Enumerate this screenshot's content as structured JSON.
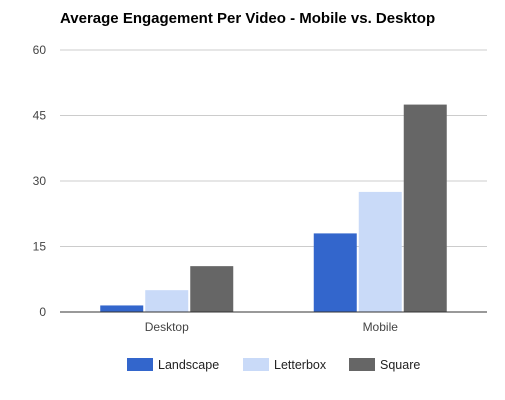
{
  "chart_data": {
    "type": "bar",
    "title": "Average Engagement Per Video - Mobile vs. Desktop",
    "xlabel": "",
    "ylabel": "",
    "categories": [
      "Desktop",
      "Mobile"
    ],
    "series": [
      {
        "name": "Landscape",
        "color": "#3366cc",
        "values": [
          1.5,
          18
        ]
      },
      {
        "name": "Letterbox",
        "color": "#c9daf8",
        "values": [
          5,
          27.5
        ]
      },
      {
        "name": "Square",
        "color": "#666666",
        "values": [
          10.5,
          47.5
        ]
      }
    ],
    "ylim": [
      0,
      60
    ],
    "yticks": [
      0,
      15,
      30,
      45,
      60
    ],
    "grid": true,
    "legend_position": "bottom"
  }
}
